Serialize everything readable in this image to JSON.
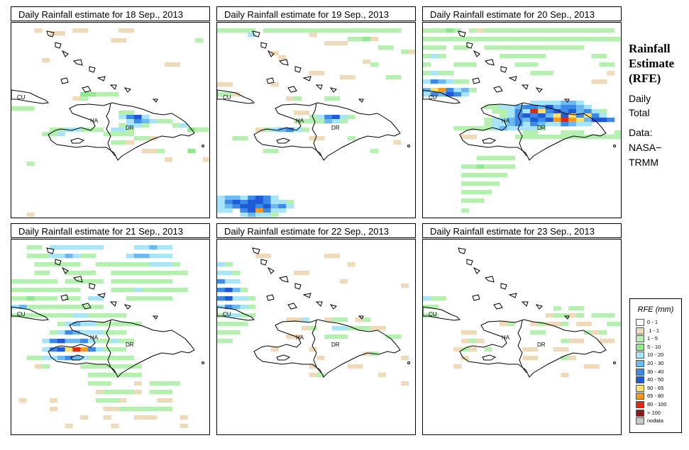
{
  "panels": [
    {
      "title": "Daily Rainfall estimate for  18 Sep., 2013"
    },
    {
      "title": "Daily Rainfall estimate for  19 Sep., 2013"
    },
    {
      "title": "Daily Rainfall estimate for  20 Sep., 2013"
    },
    {
      "title": "Daily Rainfall estimate for  21 Sep., 2013"
    },
    {
      "title": "Daily Rainfall estimate for  22 Sep., 2013"
    },
    {
      "title": "Daily Rainfall estimate for  23 Sep., 2013"
    }
  ],
  "map_labels": {
    "cu": "CU",
    "ha": "HA",
    "dr": "DR"
  },
  "side": {
    "heading": [
      "Rainfall",
      "Estimate",
      "(RFE)"
    ],
    "daily": [
      "Daily",
      "Total"
    ],
    "data": [
      "Data:",
      "NASA−",
      "TRMM"
    ]
  },
  "legend": {
    "title": "RFE (mm)",
    "items": [
      {
        "label": "0 - 1",
        "color": "#ffffff"
      },
      {
        "label": ".1 - 1",
        "color": "#eed9b8"
      },
      {
        "label": "1 - 5",
        "color": "#b5f0b0"
      },
      {
        "label": "5 - 10",
        "color": "#8fe88f"
      },
      {
        "label": "10 - 20",
        "color": "#a8e4f8"
      },
      {
        "label": "20 - 30",
        "color": "#6cb8f0"
      },
      {
        "label": "30 - 40",
        "color": "#3b8ae8"
      },
      {
        "label": "40 - 50",
        "color": "#1f5ad8"
      },
      {
        "label": "50 - 65",
        "color": "#f5e070"
      },
      {
        "label": "65 - 80",
        "color": "#f59a1c"
      },
      {
        "label": "80 - 100",
        "color": "#e02a10"
      },
      {
        "label": "> 100",
        "color": "#8b1a1a"
      },
      {
        "label": "nodata",
        "color": "#c8c8c8"
      }
    ]
  }
}
